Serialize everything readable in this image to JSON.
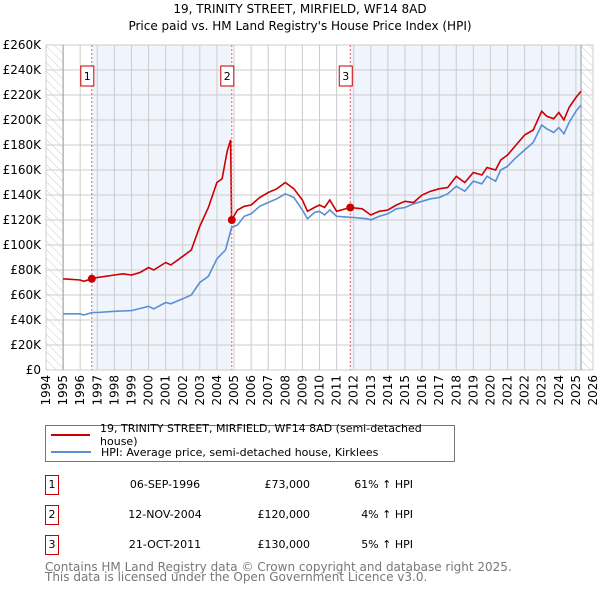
{
  "chart_data": {
    "type": "line",
    "title": "19, TRINITY STREET, MIRFIELD, WF14 8AD",
    "subtitle": "Price paid vs. HM Land Registry's House Price Index (HPI)",
    "xlim": [
      1994,
      2026
    ],
    "ylim": [
      0,
      260000
    ],
    "x_ticks": [
      "1994",
      "1995",
      "1996",
      "1997",
      "1998",
      "1999",
      "2000",
      "2001",
      "2002",
      "2003",
      "2004",
      "2005",
      "2006",
      "2007",
      "2008",
      "2009",
      "2010",
      "2011",
      "2012",
      "2013",
      "2014",
      "2015",
      "2016",
      "2017",
      "2018",
      "2019",
      "2020",
      "2021",
      "2022",
      "2023",
      "2024",
      "2025",
      "2026"
    ],
    "y_ticks": [
      "£0",
      "£20K",
      "£40K",
      "£60K",
      "£80K",
      "£100K",
      "£120K",
      "£140K",
      "£160K",
      "£180K",
      "£200K",
      "£220K",
      "£240K",
      "£260K"
    ],
    "grid": true,
    "series": [
      {
        "name": "19, TRINITY STREET, MIRFIELD, WF14 8AD (semi-detached house)",
        "color": "#cc0000",
        "x": [
          1995,
          1996,
          1996.2,
          1996.7,
          1997,
          1997.5,
          1998,
          1998.5,
          1999,
          1999.5,
          2000,
          2000.3,
          2001,
          2001.3,
          2002,
          2002.5,
          2003,
          2003.5,
          2004,
          2004.3,
          2004.6,
          2004.8,
          2004.86,
          2005.2,
          2005.6,
          2006,
          2006.5,
          2007,
          2007.5,
          2008,
          2008.5,
          2009,
          2009.3,
          2009.7,
          2010,
          2010.3,
          2010.6,
          2011,
          2011.8,
          2012.5,
          2013,
          2013.5,
          2014,
          2014.5,
          2015,
          2015.5,
          2016,
          2016.5,
          2017,
          2017.5,
          2018,
          2018.5,
          2019,
          2019.5,
          2019.8,
          2020.3,
          2020.6,
          2021,
          2021.5,
          2022,
          2022.5,
          2023,
          2023.3,
          2023.7,
          2024,
          2024.3,
          2024.6,
          2025,
          2025.3
        ],
        "y": [
          73000,
          72000,
          71000,
          73000,
          74000,
          75000,
          76000,
          77000,
          76000,
          78000,
          82000,
          80000,
          86000,
          84000,
          91000,
          96000,
          115000,
          130000,
          150000,
          153000,
          175000,
          184000,
          120000,
          128000,
          131000,
          132000,
          138000,
          142000,
          145000,
          150000,
          145000,
          136000,
          127000,
          130000,
          132000,
          130000,
          136000,
          127000,
          130000,
          129000,
          124000,
          127000,
          128000,
          132000,
          135000,
          134000,
          140000,
          143000,
          145000,
          146000,
          155000,
          150000,
          158000,
          156000,
          162000,
          160000,
          168000,
          172000,
          180000,
          188000,
          192000,
          207000,
          203000,
          201000,
          206000,
          200000,
          210000,
          218000,
          223000
        ]
      },
      {
        "name": "HPI: Average price, semi-detached house, Kirklees",
        "color": "#5b8fd4",
        "x": [
          1995,
          1996,
          1996.2,
          1996.7,
          1997,
          1998,
          1999,
          2000,
          2000.3,
          2001,
          2001.3,
          2002,
          2002.5,
          2003,
          2003.5,
          2004,
          2004.5,
          2004.86,
          2005.2,
          2005.6,
          2006,
          2006.5,
          2007,
          2007.5,
          2008,
          2008.5,
          2009,
          2009.3,
          2009.7,
          2010,
          2010.3,
          2010.6,
          2011,
          2012,
          2012.8,
          2013,
          2013.5,
          2014,
          2014.5,
          2015,
          2015.5,
          2016,
          2016.5,
          2017,
          2017.5,
          2018,
          2018.5,
          2019,
          2019.5,
          2019.8,
          2020.3,
          2020.6,
          2021,
          2021.5,
          2022,
          2022.5,
          2023,
          2023.3,
          2023.7,
          2024,
          2024.3,
          2024.6,
          2025,
          2025.3
        ],
        "y": [
          45000,
          45000,
          44000,
          46000,
          46000,
          47000,
          47500,
          51000,
          49000,
          54000,
          53000,
          57000,
          60000,
          70000,
          75000,
          89000,
          96000,
          114000,
          116000,
          123000,
          125000,
          131000,
          134000,
          137000,
          141000,
          138000,
          128000,
          121000,
          126000,
          127000,
          124000,
          128000,
          123000,
          122000,
          121000,
          120000,
          123000,
          125000,
          129000,
          130000,
          133000,
          135000,
          137000,
          138000,
          141000,
          147000,
          143000,
          151000,
          149000,
          155000,
          151000,
          160000,
          163000,
          170000,
          176000,
          182000,
          196000,
          193000,
          190000,
          194000,
          189000,
          198000,
          207000,
          212000
        ]
      }
    ],
    "sales": [
      {
        "id": "1",
        "x": 1996.68,
        "price": 73000
      },
      {
        "id": "2",
        "x": 2004.87,
        "price": 120000
      },
      {
        "id": "3",
        "x": 2011.8,
        "price": 130000
      }
    ],
    "data_end": 2025.3
  },
  "legend": {
    "red": "19, TRINITY STREET, MIRFIELD, WF14 8AD (semi-detached house)",
    "blue": "HPI: Average price, semi-detached house, Kirklees"
  },
  "table": [
    {
      "id": "1",
      "date": "06-SEP-1996",
      "price": "£73,000",
      "hpi": "61% ↑ HPI"
    },
    {
      "id": "2",
      "date": "12-NOV-2004",
      "price": "£120,000",
      "hpi": "4% ↑ HPI"
    },
    {
      "id": "3",
      "date": "21-OCT-2011",
      "price": "£130,000",
      "hpi": "5% ↑ HPI"
    }
  ],
  "footer": [
    "Contains HM Land Registry data © Crown copyright and database right 2025.",
    "This data is licensed under the Open Government Licence v3.0."
  ]
}
